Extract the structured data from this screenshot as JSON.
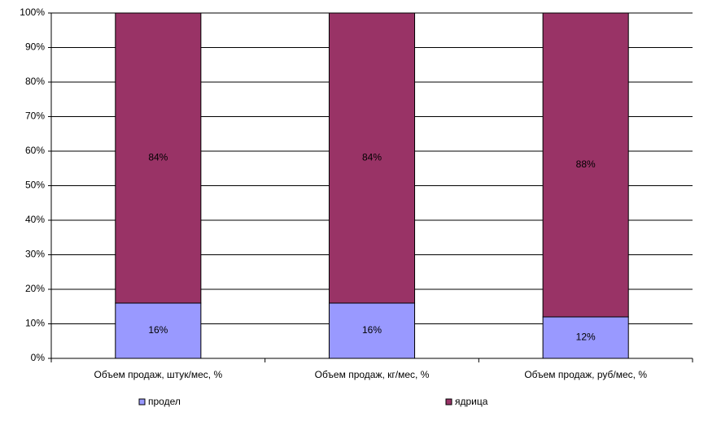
{
  "chart_data": {
    "type": "stacked_bar",
    "categories": [
      "Объем продаж, штук/мес, %",
      "Объем продаж, кг/мес, %",
      "Объем продаж, руб/мес, %"
    ],
    "series": [
      {
        "name": "продел",
        "color": "#9999ff",
        "values": [
          16,
          16,
          12
        ],
        "value_labels": [
          "16%",
          "16%",
          "12%"
        ]
      },
      {
        "name": "ядрица",
        "color": "#993366",
        "values": [
          84,
          84,
          88
        ],
        "value_labels": [
          "84%",
          "84%",
          "88%"
        ]
      }
    ],
    "ylim": [
      0,
      100
    ],
    "yticks": [
      {
        "value": 0,
        "label": "0%"
      },
      {
        "value": 10,
        "label": "10%"
      },
      {
        "value": 20,
        "label": "20%"
      },
      {
        "value": 30,
        "label": "30%"
      },
      {
        "value": 40,
        "label": "40%"
      },
      {
        "value": 50,
        "label": "50%"
      },
      {
        "value": 60,
        "label": "60%"
      },
      {
        "value": 70,
        "label": "70%"
      },
      {
        "value": 80,
        "label": "80%"
      },
      {
        "value": 90,
        "label": "90%"
      },
      {
        "value": 100,
        "label": "100%"
      }
    ],
    "grid": true,
    "legend": "bottom"
  }
}
